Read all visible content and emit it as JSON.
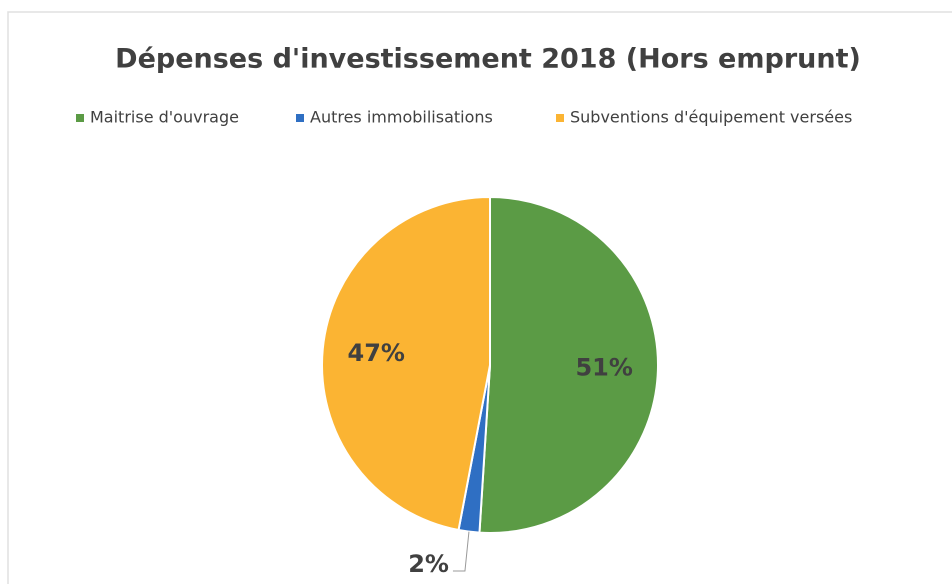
{
  "chart_data": {
    "type": "pie",
    "title": "Dépenses d'investissement 2018 (Hors emprunt)",
    "categories": [
      "Maitrise d'ouvrage",
      "Autres immobilisations",
      "Subventions d'équipement versées"
    ],
    "values": [
      51,
      2,
      47
    ],
    "value_labels": [
      "51%",
      "2%",
      "47%"
    ],
    "colors": [
      "#5b9b45",
      "#2f6fc3",
      "#fbb433"
    ],
    "legend": "top"
  }
}
